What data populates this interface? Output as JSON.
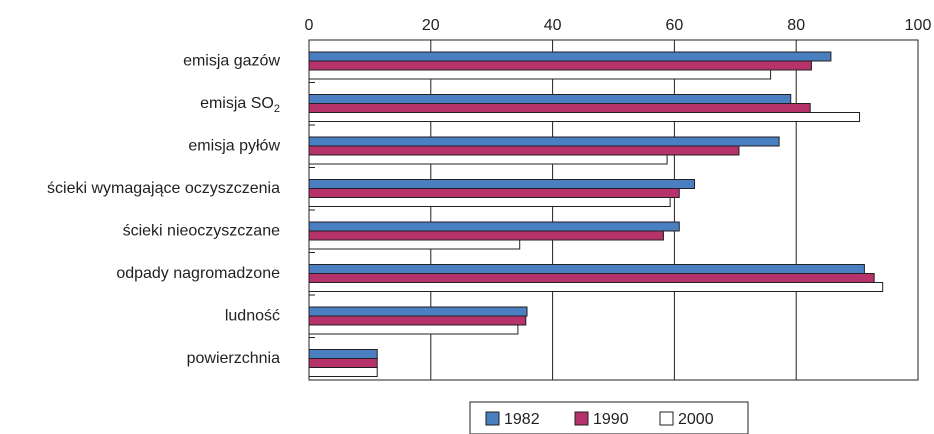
{
  "chart_data": {
    "type": "bar",
    "orientation": "horizontal",
    "categories": [
      "emisja gazów",
      "emisja SO2",
      "emisja pyłów",
      "ścieki wymagające oczyszczenia",
      "ścieki nieoczyszczane",
      "odpady nagromadzone",
      "ludność",
      "powierzchnia"
    ],
    "category_parts": [
      {
        "main": "emisja gazów",
        "sub": ""
      },
      {
        "main": "emisja SO",
        "sub": "2"
      },
      {
        "main": "emisja pyłów",
        "sub": ""
      },
      {
        "main": "ścieki wymagające oczyszczenia",
        "sub": ""
      },
      {
        "main": "ścieki nieoczyszczane",
        "sub": ""
      },
      {
        "main": "odpady nagromadzone",
        "sub": ""
      },
      {
        "main": "ludność",
        "sub": ""
      },
      {
        "main": "powierzchnia",
        "sub": ""
      }
    ],
    "series": [
      {
        "name": "1982",
        "color": "#4a7fc1",
        "values": [
          85.7,
          79.1,
          77.2,
          63.3,
          60.8,
          91.2,
          35.8,
          11.2
        ]
      },
      {
        "name": "1990",
        "color": "#b5336a",
        "values": [
          82.5,
          82.3,
          70.6,
          60.8,
          58.2,
          92.8,
          35.6,
          11.2
        ]
      },
      {
        "name": "2000",
        "color": "#ffffff",
        "values": [
          75.8,
          90.4,
          58.8,
          59.3,
          34.6,
          94.2,
          34.3,
          11.2
        ]
      }
    ],
    "xlim": [
      0,
      100
    ],
    "xticks": [
      "0",
      "20",
      "40",
      "60",
      "80",
      "100"
    ],
    "grid": true,
    "legend_position": "bottom",
    "title": "",
    "xlabel": "",
    "ylabel": ""
  }
}
